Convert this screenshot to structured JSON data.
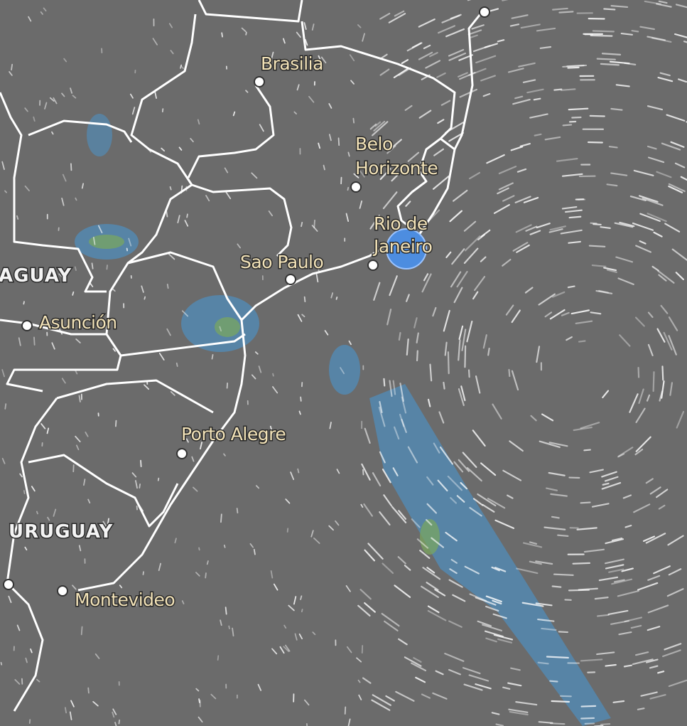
{
  "cities": [
    {
      "name": [
        "Brasilia"
      ]
    },
    {
      "name": [
        "Belo",
        "Horizonte"
      ]
    },
    {
      "name": [
        "Rio de",
        "Janeiro"
      ]
    },
    {
      "name": [
        "Sao Paulo"
      ]
    },
    {
      "name": [
        "Asunción"
      ]
    },
    {
      "name": [
        "Porto Alegre"
      ]
    },
    {
      "name": [
        "Montevideo"
      ]
    }
  ],
  "countries": [
    "AGUAY",
    "URUGUAY"
  ]
}
